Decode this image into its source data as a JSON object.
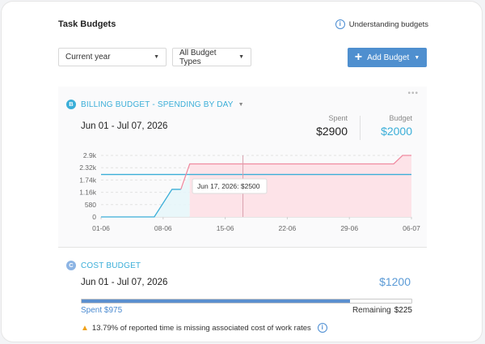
{
  "header": {
    "title": "Task Budgets",
    "help_link": "Understanding budgets"
  },
  "filters": {
    "period": "Current year",
    "budget_types": "All Budget Types",
    "add_button": "Add Budget"
  },
  "billing": {
    "badge": "B",
    "title": "BILLING BUDGET - SPENDING BY DAY",
    "range": "Jun 01 - Jul 07, 2026",
    "spent_label": "Spent",
    "spent_value": "$2900",
    "budget_label": "Budget",
    "budget_value": "$2000",
    "tooltip": "Jun 17, 2026: $2500"
  },
  "cost": {
    "badge": "C",
    "title": "COST BUDGET",
    "range": "Jun 01 - Jul 07, 2026",
    "budget_value": "$1200",
    "spent_text": "Spent $975",
    "remaining_label": "Remaining",
    "remaining_value": "$225",
    "progress": 0.8125,
    "warning": "13.79% of reported time is missing associated cost of work rates"
  },
  "colors": {
    "accent": "#4f8fcf",
    "billing": "#3aaed8",
    "over_budget_fill": "#fde3e8",
    "over_budget_line": "#f08aa0",
    "budget_line": "#3aaed8"
  },
  "chart_data": {
    "type": "line",
    "x_ticks": [
      "01-06",
      "08-06",
      "15-06",
      "22-06",
      "29-06",
      "06-07"
    ],
    "y_ticks": [
      "0",
      "580",
      "1.16k",
      "1.74k",
      "2.32k",
      "2.9k"
    ],
    "ylim": [
      0,
      2900
    ],
    "budget": 2000,
    "series": [
      {
        "points": [
          [
            "2026-06-01",
            0
          ],
          [
            "2026-06-07",
            0
          ],
          [
            "2026-06-09",
            1300
          ],
          [
            "2026-06-10",
            1300
          ],
          [
            "2026-06-11",
            2500
          ],
          [
            "2026-07-04",
            2500
          ],
          [
            "2026-07-05",
            2900
          ],
          [
            "2026-07-06",
            2900
          ]
        ]
      }
    ]
  }
}
